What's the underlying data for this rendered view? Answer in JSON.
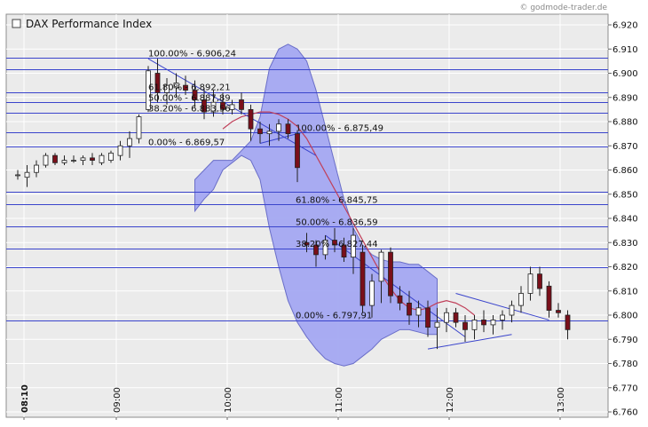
{
  "watermark": "© godmode-trader.de",
  "chart_data": {
    "type": "candlestick",
    "title": "DAX Performance Index",
    "ylim": [
      6760,
      6920
    ],
    "y_ticks": [
      6760,
      6770,
      6780,
      6790,
      6800,
      6810,
      6820,
      6830,
      6840,
      6850,
      6860,
      6870,
      6880,
      6890,
      6900,
      6910,
      6920
    ],
    "y_tick_labels": [
      "6.760",
      "6.770",
      "6.780",
      "6.790",
      "6.800",
      "6.810",
      "6.820",
      "6.830",
      "6.840",
      "6.850",
      "6.860",
      "6.870",
      "6.880",
      "6.890",
      "6.900",
      "6.910",
      "6.920"
    ],
    "x_ticks": [
      "08:10",
      "09:00",
      "10:00",
      "11:00",
      "12:00",
      "13:00"
    ],
    "horizontal_levels": [
      6906.24,
      6901.8,
      6892.21,
      6887.89,
      6883.56,
      6875.49,
      6869.57,
      6851.0,
      6845.75,
      6836.59,
      6827.44,
      6820.0,
      6797.91
    ],
    "fib_labels": [
      {
        "text": "100.00% - 6.906,24",
        "value": 6906.24
      },
      {
        "text": "61.80% - 6.892,21",
        "value": 6892.21
      },
      {
        "text": "50.00% - 6.887,89",
        "value": 6887.89
      },
      {
        "text": "38.20% - 6.883,56",
        "value": 6883.56
      },
      {
        "text": "0.00% - 6.869,57",
        "value": 6869.57
      },
      {
        "text": "100.00% - 6.875,49",
        "value": 6875.49
      },
      {
        "text": "61.80% - 6.845,75",
        "value": 6845.75
      },
      {
        "text": "50.00% - 6.836,59",
        "value": 6836.59
      },
      {
        "text": "38.20% - 6.827,44",
        "value": 6827.44
      },
      {
        "text": "0.00% - 6.797,91",
        "value": 6797.91
      }
    ],
    "candles": [
      {
        "o": 6858,
        "h": 6860,
        "l": 6856,
        "c": 6858
      },
      {
        "o": 6857,
        "h": 6862,
        "l": 6853,
        "c": 6859
      },
      {
        "o": 6859,
        "h": 6864,
        "l": 6857,
        "c": 6862
      },
      {
        "o": 6862,
        "h": 6867,
        "l": 6861,
        "c": 6866
      },
      {
        "o": 6866,
        "h": 6867,
        "l": 6862,
        "c": 6863
      },
      {
        "o": 6863,
        "h": 6866,
        "l": 6862,
        "c": 6864
      },
      {
        "o": 6864,
        "h": 6866,
        "l": 6863,
        "c": 6864
      },
      {
        "o": 6864,
        "h": 6866,
        "l": 6862,
        "c": 6865
      },
      {
        "o": 6865,
        "h": 6867,
        "l": 6862,
        "c": 6864
      },
      {
        "o": 6863,
        "h": 6867,
        "l": 6862,
        "c": 6866
      },
      {
        "o": 6864,
        "h": 6868,
        "l": 6863,
        "c": 6867
      },
      {
        "o": 6866,
        "h": 6872,
        "l": 6864,
        "c": 6870
      },
      {
        "o": 6870,
        "h": 6876,
        "l": 6865,
        "c": 6873
      },
      {
        "o": 6873,
        "h": 6883,
        "l": 6871,
        "c": 6882
      },
      {
        "o": 6885,
        "h": 6903,
        "l": 6884,
        "c": 6901
      },
      {
        "o": 6900,
        "h": 6906,
        "l": 6888,
        "c": 6892
      },
      {
        "o": 6892,
        "h": 6898,
        "l": 6887,
        "c": 6895
      },
      {
        "o": 6894,
        "h": 6900,
        "l": 6890,
        "c": 6896
      },
      {
        "o": 6895,
        "h": 6899,
        "l": 6891,
        "c": 6893
      },
      {
        "o": 6893,
        "h": 6897,
        "l": 6886,
        "c": 6889
      },
      {
        "o": 6889,
        "h": 6894,
        "l": 6881,
        "c": 6884
      },
      {
        "o": 6884,
        "h": 6893,
        "l": 6882,
        "c": 6888
      },
      {
        "o": 6888,
        "h": 6892,
        "l": 6883,
        "c": 6885
      },
      {
        "o": 6885,
        "h": 6889,
        "l": 6883,
        "c": 6887
      },
      {
        "o": 6889,
        "h": 6892,
        "l": 6883,
        "c": 6885
      },
      {
        "o": 6885,
        "h": 6887,
        "l": 6872,
        "c": 6877
      },
      {
        "o": 6877,
        "h": 6880,
        "l": 6871,
        "c": 6875
      },
      {
        "o": 6875,
        "h": 6879,
        "l": 6870,
        "c": 6876
      },
      {
        "o": 6876,
        "h": 6881,
        "l": 6872,
        "c": 6879
      },
      {
        "o": 6879,
        "h": 6881,
        "l": 6873,
        "c": 6875
      },
      {
        "o": 6875,
        "h": 6876,
        "l": 6855,
        "c": 6861
      },
      {
        "o": 6830,
        "h": 6834,
        "l": 6826,
        "c": 6829
      },
      {
        "o": 6829,
        "h": 6831,
        "l": 6820,
        "c": 6825
      },
      {
        "o": 6825,
        "h": 6833,
        "l": 6823,
        "c": 6831
      },
      {
        "o": 6831,
        "h": 6836,
        "l": 6826,
        "c": 6829
      },
      {
        "o": 6829,
        "h": 6832,
        "l": 6822,
        "c": 6824
      },
      {
        "o": 6824,
        "h": 6836,
        "l": 6817,
        "c": 6833
      },
      {
        "o": 6826,
        "h": 6829,
        "l": 6801,
        "c": 6804
      },
      {
        "o": 6804,
        "h": 6817,
        "l": 6799,
        "c": 6814
      },
      {
        "o": 6814,
        "h": 6827,
        "l": 6805,
        "c": 6826
      },
      {
        "o": 6826,
        "h": 6828,
        "l": 6805,
        "c": 6808
      },
      {
        "o": 6808,
        "h": 6812,
        "l": 6802,
        "c": 6805
      },
      {
        "o": 6805,
        "h": 6810,
        "l": 6796,
        "c": 6800
      },
      {
        "o": 6800,
        "h": 6806,
        "l": 6795,
        "c": 6803
      },
      {
        "o": 6803,
        "h": 6806,
        "l": 6791,
        "c": 6795
      },
      {
        "o": 6795,
        "h": 6803,
        "l": 6786,
        "c": 6797
      },
      {
        "o": 6797,
        "h": 6803,
        "l": 6793,
        "c": 6801
      },
      {
        "o": 6801,
        "h": 6803,
        "l": 6795,
        "c": 6797
      },
      {
        "o": 6797,
        "h": 6800,
        "l": 6789,
        "c": 6794
      },
      {
        "o": 6794,
        "h": 6800,
        "l": 6790,
        "c": 6798
      },
      {
        "o": 6798,
        "h": 6802,
        "l": 6793,
        "c": 6796
      },
      {
        "o": 6796,
        "h": 6800,
        "l": 6792,
        "c": 6798
      },
      {
        "o": 6798,
        "h": 6802,
        "l": 6794,
        "c": 6800
      },
      {
        "o": 6800,
        "h": 6806,
        "l": 6797,
        "c": 6804
      },
      {
        "o": 6804,
        "h": 6812,
        "l": 6801,
        "c": 6809
      },
      {
        "o": 6809,
        "h": 6820,
        "l": 6806,
        "c": 6817
      },
      {
        "o": 6817,
        "h": 6820,
        "l": 6808,
        "c": 6811
      },
      {
        "o": 6812,
        "h": 6814,
        "l": 6799,
        "c": 6802
      },
      {
        "o": 6802,
        "h": 6805,
        "l": 6799,
        "c": 6801
      },
      {
        "o": 6800,
        "h": 6802,
        "l": 6790,
        "c": 6794
      }
    ],
    "moving_average": [
      6877,
      6880,
      6882,
      6883,
      6884,
      6884,
      6883,
      6881,
      6878,
      6873,
      6866,
      6859,
      6852,
      6845,
      6838,
      6831,
      6824,
      6817,
      6811,
      6806,
      6803,
      6802,
      6803,
      6805,
      6806,
      6805,
      6803,
      6800
    ],
    "bollinger_upper": [
      6856,
      6860,
      6864,
      6864,
      6864,
      6868,
      6872,
      6882,
      6902,
      6910,
      6912,
      6910,
      6905,
      6893,
      6878,
      6863,
      6848,
      6836,
      6829,
      6825,
      6823,
      6822,
      6822,
      6821,
      6821,
      6818,
      6815
    ],
    "bollinger_lower": [
      6843,
      6848,
      6852,
      6860,
      6863,
      6866,
      6864,
      6856,
      6836,
      6820,
      6806,
      6797,
      6791,
      6786,
      6782,
      6780,
      6779,
      6780,
      6783,
      6786,
      6790,
      6792,
      6794,
      6794,
      6793,
      6792,
      6792
    ],
    "trend_lines": [
      {
        "from": [
          14,
          6906
        ],
        "to": [
          32,
          6866
        ]
      },
      {
        "from": [
          26,
          6871
        ],
        "to": [
          31,
          6876
        ]
      },
      {
        "from": [
          33,
          6833
        ],
        "to": [
          48,
          6791
        ]
      },
      {
        "from": [
          47,
          6809
        ],
        "to": [
          57,
          6798
        ]
      },
      {
        "from": [
          44,
          6786
        ],
        "to": [
          53,
          6792
        ]
      }
    ]
  }
}
